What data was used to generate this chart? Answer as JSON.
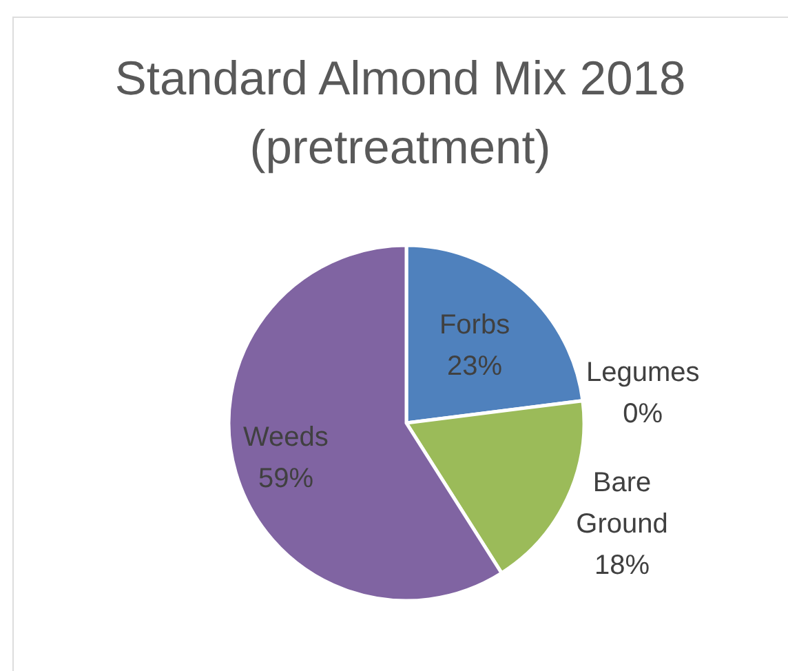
{
  "chart_data": {
    "type": "pie",
    "title": "Standard Almond Mix 2018 (pretreatment)",
    "categories": [
      "Forbs",
      "Legumes",
      "Bare Ground",
      "Weeds"
    ],
    "values": [
      23,
      0,
      18,
      59
    ],
    "colors": [
      "#4f81bd",
      "#c0504d",
      "#9bbb59",
      "#8064a2"
    ],
    "value_labels": [
      "23%",
      "0%",
      "18%",
      "59%"
    ]
  }
}
